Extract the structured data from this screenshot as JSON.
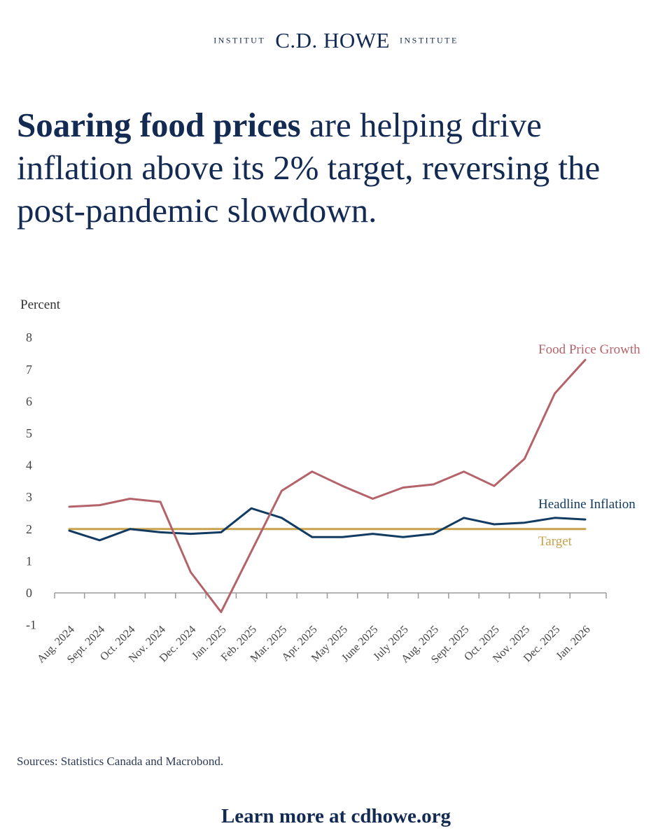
{
  "brand": {
    "left_word": "Institut",
    "name": "C.D. HOWE",
    "right_word": "Institute"
  },
  "headline": {
    "bold": "Soaring food prices",
    "rest": "are helping drive inflation above its 2% target, reversing the post-pandemic slowdown."
  },
  "chart_data": {
    "type": "line",
    "ylabel": "Percent",
    "ylim": [
      -1,
      8
    ],
    "yticks": [
      -1,
      0,
      1,
      2,
      3,
      4,
      5,
      6,
      7,
      8
    ],
    "grid": false,
    "categories": [
      "Aug. 2024",
      "Sept. 2024",
      "Oct. 2024",
      "Nov. 2024",
      "Dec. 2024",
      "Jan. 2025",
      "Feb. 2025",
      "Mar. 2025",
      "Apr. 2025",
      "May 2025",
      "June 2025",
      "July 2025",
      "Aug. 2025",
      "Sept. 2025",
      "Oct. 2025",
      "Nov. 2025",
      "Dec. 2025",
      "Jan. 2026"
    ],
    "series": [
      {
        "name": "Food Price Growth",
        "color": "#b5636a",
        "values": [
          2.7,
          2.75,
          2.95,
          2.85,
          0.65,
          -0.6,
          1.3,
          3.2,
          3.8,
          3.35,
          2.95,
          3.3,
          3.4,
          3.8,
          3.35,
          4.2,
          6.25,
          7.3
        ]
      },
      {
        "name": "Headline Inflation",
        "color": "#123b62",
        "values": [
          1.95,
          1.65,
          2.0,
          1.9,
          1.85,
          1.9,
          2.65,
          2.35,
          1.75,
          1.75,
          1.85,
          1.75,
          1.85,
          2.35,
          2.15,
          2.2,
          2.35,
          2.3
        ]
      },
      {
        "name": "Target",
        "color": "#c9a24d",
        "values": [
          2,
          2,
          2,
          2,
          2,
          2,
          2,
          2,
          2,
          2,
          2,
          2,
          2,
          2,
          2,
          2,
          2,
          2
        ]
      }
    ]
  },
  "source": "Sources: Statistics Canada and Macrobond.",
  "cta": "Learn more at cdhowe.org"
}
